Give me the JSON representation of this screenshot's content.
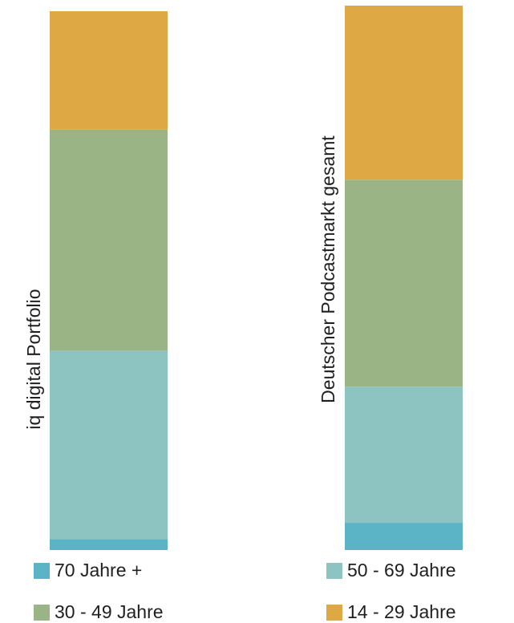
{
  "chart_data": {
    "type": "bar",
    "stacked": true,
    "orientation": "vertical",
    "normalized_percent": true,
    "categories": [
      "iq digital Portfolio",
      "Deutscher Podcastmarkt gesamt"
    ],
    "series": [
      {
        "name": "70 Jahre +",
        "color": "#5bb3c6",
        "values": [
          2,
          5
        ]
      },
      {
        "name": "50 - 69 Jahre",
        "color": "#8dc3c0",
        "values": [
          35,
          25
        ]
      },
      {
        "name": "30 - 49 Jahre",
        "color": "#9bb486",
        "values": [
          41,
          38
        ]
      },
      {
        "name": "14 - 29 Jahre",
        "color": "#dea845",
        "values": [
          22,
          32
        ]
      }
    ],
    "ylim": [
      0,
      100
    ],
    "legend_placement": "bottom",
    "legend_order": [
      "70 Jahre +",
      "50 - 69 Jahre",
      "30 - 49 Jahre",
      "14 - 29 Jahre"
    ],
    "grid": false
  }
}
